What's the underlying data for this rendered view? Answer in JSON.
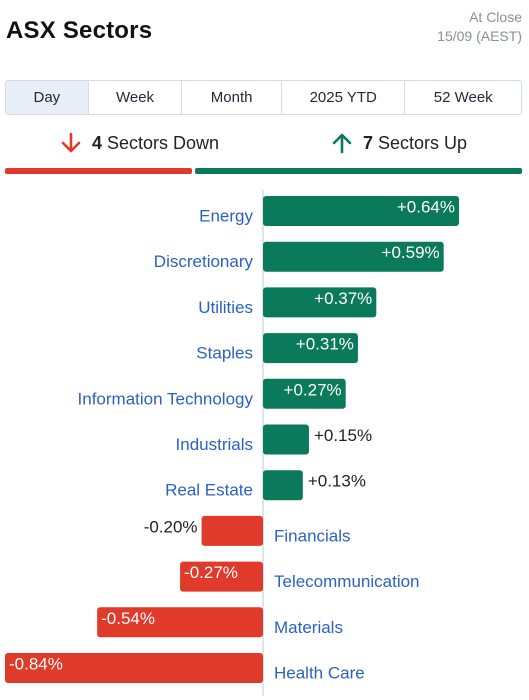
{
  "header": {
    "title": "ASX Sectors",
    "status_line1": "At Close",
    "status_line2": "15/09 (AEST)"
  },
  "tabs": [
    {
      "label": "Day",
      "active": true
    },
    {
      "label": "Week",
      "active": false
    },
    {
      "label": "Month",
      "active": false
    },
    {
      "label": "2025 YTD",
      "active": false
    },
    {
      "label": "52 Week",
      "active": false
    }
  ],
  "summary": {
    "down_count": "4",
    "down_label": "Sectors Down",
    "up_count": "7",
    "up_label": "Sectors Up"
  },
  "colors": {
    "positive": "#0b7a5a",
    "negative": "#e03a2a",
    "label": "#2a62c4",
    "axis": "#d4dbe6"
  },
  "chart_data": {
    "type": "bar",
    "orientation": "horizontal",
    "categories": [
      "Energy",
      "Discretionary",
      "Utilities",
      "Staples",
      "Information Technology",
      "Industrials",
      "Real Estate",
      "Financials",
      "Telecommunication",
      "Materials",
      "Health Care"
    ],
    "values": [
      0.64,
      0.59,
      0.37,
      0.31,
      0.27,
      0.15,
      0.13,
      -0.2,
      -0.27,
      -0.54,
      -0.84
    ],
    "value_labels": [
      "+0.64%",
      "+0.59%",
      "+0.37%",
      "+0.31%",
      "+0.27%",
      "+0.15%",
      "+0.13%",
      "-0.20%",
      "-0.27%",
      "-0.54%",
      "-0.84%"
    ],
    "unit": "%",
    "xlim": [
      -0.84,
      0.64
    ]
  }
}
